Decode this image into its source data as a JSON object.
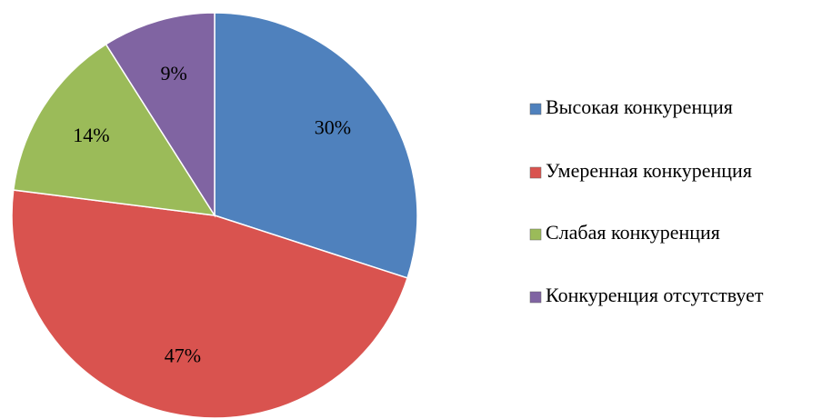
{
  "chart_data": {
    "type": "pie",
    "categories": [
      "Высокая конкуренция",
      "Умеренная конкуренция",
      "Слабая конкуренция",
      "Конкуренция отсутствует"
    ],
    "values": [
      30,
      47,
      14,
      9
    ],
    "value_labels": [
      "30%",
      "47%",
      "14%",
      "9%"
    ],
    "colors": [
      "#4f81bd",
      "#d9534f",
      "#9bbb59",
      "#8064a2"
    ],
    "legend": "right"
  }
}
